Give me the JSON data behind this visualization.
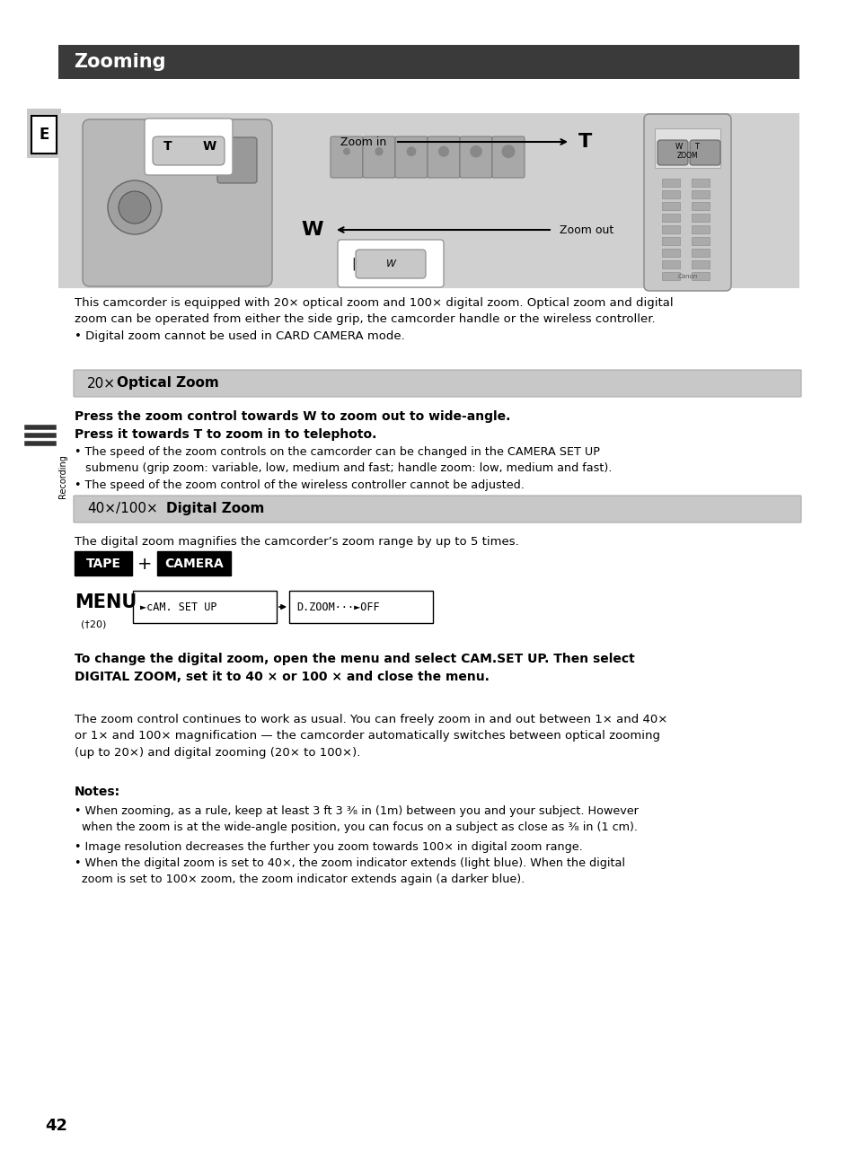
{
  "page_bg": "#ffffff",
  "title_bg": "#3a3a3a",
  "title_text": "Zooming",
  "title_color": "#ffffff",
  "section1_bg": "#c8c8c8",
  "section2_bg": "#c8c8c8",
  "diagram_bg": "#d0d0d0",
  "body_text": "This camcorder is equipped with 20× optical zoom and 100× digital zoom. Optical zoom and digital\nzoom can be operated from either the side grip, the camcorder handle or the wireless controller.\n• Digital zoom cannot be used in CARD CAMERA mode.",
  "bold_line1": "Press the zoom control towards W to zoom out to wide-angle.",
  "bold_line2": "Press it towards T to zoom in to telephoto.",
  "bullet1": "• The speed of the zoom controls on the camcorder can be changed in the CAMERA SET UP\n   submenu (grip zoom: variable, low, medium and fast; handle zoom: low, medium and fast).",
  "bullet2": "• The speed of the zoom control of the wireless controller cannot be adjusted.",
  "digital_zoom_desc": "The digital zoom magnifies the camcorder’s zoom range by up to 5 times.",
  "tape_text": "TAPE",
  "camera_text": "CAMERA",
  "menu_text": "MENU",
  "menu_ref": "(†20)",
  "cam_set_up": "►cAM. SET UP",
  "d_zoom": "D.ZOOM···►OFF",
  "bold_para": "To change the digital zoom, open the menu and select CAM.SET UP. Then select\nDIGITAL ZOOM, set it to 40 × or 100 × and close the menu.",
  "zoom_continue": "The zoom control continues to work as usual. You can freely zoom in and out between 1× and 40×\nor 1× and 100× magnification — the camcorder automatically switches between optical zooming\n(up to 20×) and digital zooming (20× to 100×).",
  "notes_title": "Notes:",
  "note1": "• When zooming, as a rule, keep at least 3 ft 3 ³⁄₈ in (1m) between you and your subject. However\n  when the zoom is at the wide-angle position, you can focus on a subject as close as ³⁄₈ in (1 cm).",
  "note2": "• Image resolution decreases the further you zoom towards 100× in digital zoom range.",
  "note3": "• When the digital zoom is set to 40×, the zoom indicator extends (light blue). When the digital\n  zoom is set to 100× zoom, the zoom indicator extends again (a darker blue).",
  "page_number": "42",
  "recording_text": "Recording"
}
